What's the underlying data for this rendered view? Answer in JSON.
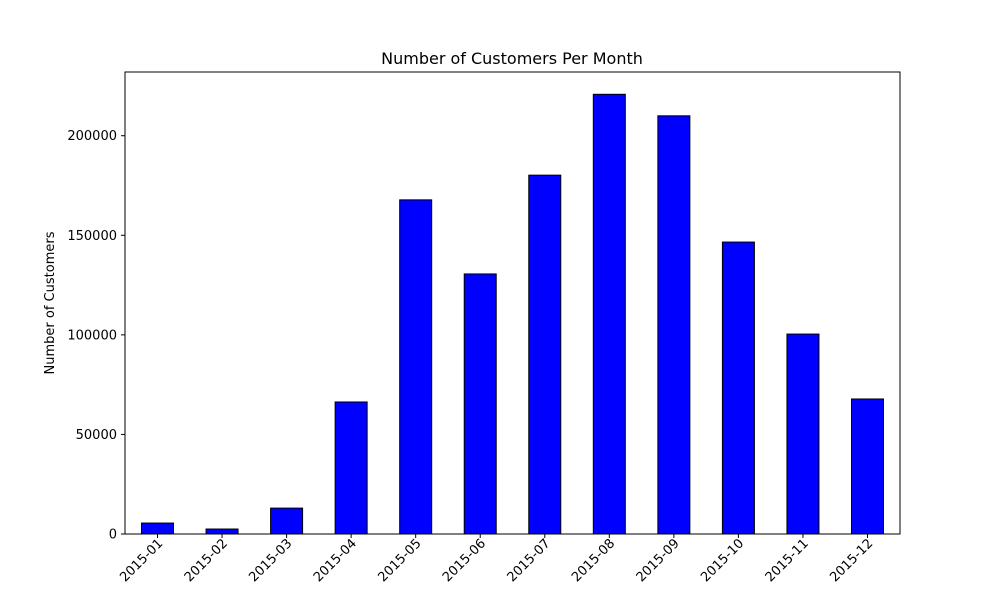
{
  "chart_data": {
    "type": "bar",
    "title": "Number of Customers Per Month",
    "xlabel": "",
    "ylabel": "Number of Customers",
    "categories": [
      "2015-01",
      "2015-02",
      "2015-03",
      "2015-04",
      "2015-05",
      "2015-06",
      "2015-07",
      "2015-08",
      "2015-09",
      "2015-10",
      "2015-11",
      "2015-12"
    ],
    "values": [
      5500,
      2500,
      13000,
      66300,
      167800,
      130600,
      180200,
      220800,
      210000,
      146600,
      100400,
      67800
    ],
    "ylim": [
      0,
      232000
    ],
    "yticks": [
      0,
      50000,
      100000,
      150000,
      200000
    ],
    "bar_color": "#0000ff",
    "bar_edge_color": "#000000",
    "grid": false,
    "legend": "none"
  }
}
